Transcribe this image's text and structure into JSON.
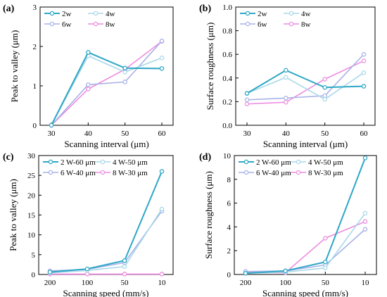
{
  "colors": {
    "s1": "#2ea7c6",
    "s2": "#a9d8ea",
    "s3": "#a9b2e6",
    "s4": "#ee8ce0"
  },
  "chart_data": [
    {
      "panel_label": "(a)",
      "type": "line",
      "xlabel": "Scanning interval (μm)",
      "ylabel": "Peak to valley (μm)",
      "categories": [
        "30",
        "40",
        "50",
        "60"
      ],
      "ylim": [
        0,
        3
      ],
      "yticks": [
        "0",
        "1",
        "2",
        "3"
      ],
      "grid": false,
      "legend": "top-left",
      "series": [
        {
          "name": "2w",
          "values": [
            0.0,
            1.85,
            1.45,
            1.44
          ]
        },
        {
          "name": "4w",
          "values": [
            0.0,
            1.76,
            1.35,
            1.71
          ]
        },
        {
          "name": "6w",
          "values": [
            0.0,
            1.03,
            1.1,
            2.14
          ]
        },
        {
          "name": "8w",
          "values": [
            0.0,
            0.92,
            1.42,
            2.13
          ]
        }
      ]
    },
    {
      "panel_label": "(b)",
      "type": "line",
      "xlabel": "Scanning interval (μm)",
      "ylabel": "Surface roughness (μm)",
      "categories": [
        "30",
        "40",
        "50",
        "60"
      ],
      "ylim": [
        0,
        1.0
      ],
      "yticks": [
        "0.0",
        "0.2",
        "0.4",
        "0.6",
        "0.8",
        "1.0"
      ],
      "grid": false,
      "legend": "top-left",
      "series": [
        {
          "name": "2w",
          "values": [
            0.27,
            0.465,
            0.32,
            0.33
          ]
        },
        {
          "name": "4w",
          "values": [
            0.27,
            0.405,
            0.22,
            0.445
          ]
        },
        {
          "name": "6w",
          "values": [
            0.215,
            0.23,
            0.25,
            0.6
          ]
        },
        {
          "name": "8w",
          "values": [
            0.18,
            0.195,
            0.39,
            0.545
          ]
        }
      ]
    },
    {
      "panel_label": "(c)",
      "type": "line",
      "xlabel": "Scanning speed (mm/s)",
      "ylabel": "Peak to valley (μm)",
      "categories": [
        "200",
        "100",
        "50",
        "10"
      ],
      "ylim": [
        0,
        30
      ],
      "yticks": [
        "0",
        "5",
        "10",
        "15",
        "20",
        "25",
        "30"
      ],
      "grid": false,
      "legend": "top-left",
      "series": [
        {
          "name": "2 W-60 μm",
          "values": [
            0.6,
            1.4,
            3.5,
            26.0
          ]
        },
        {
          "name": "4 W-50 μm",
          "values": [
            0.4,
            1.0,
            2.0,
            16.5
          ]
        },
        {
          "name": "6 W-40 μm",
          "values": [
            0.9,
            1.3,
            3.0,
            16.0
          ]
        },
        {
          "name": "8 W-30 μm",
          "values": [
            0.1,
            0.1,
            0.1,
            0.1
          ]
        }
      ]
    },
    {
      "panel_label": "(d)",
      "type": "line",
      "xlabel": "Scanning speed (mm/s)",
      "ylabel": "Surface roughness (μm)",
      "categories": [
        "200",
        "100",
        "50",
        "10"
      ],
      "ylim": [
        0,
        10
      ],
      "yticks": [
        "0",
        "2",
        "4",
        "6",
        "8",
        "10"
      ],
      "grid": false,
      "legend": "top-left",
      "series": [
        {
          "name": "2 W-60 μm",
          "values": [
            0.1,
            0.3,
            1.05,
            9.8
          ]
        },
        {
          "name": "4 W-50 μm",
          "values": [
            0.1,
            0.2,
            0.55,
            5.15
          ]
        },
        {
          "name": "6 W-40 μm",
          "values": [
            0.25,
            0.3,
            0.8,
            3.8
          ]
        },
        {
          "name": "8 W-30 μm",
          "values": [
            0.15,
            0.15,
            3.05,
            4.45
          ]
        }
      ]
    }
  ]
}
